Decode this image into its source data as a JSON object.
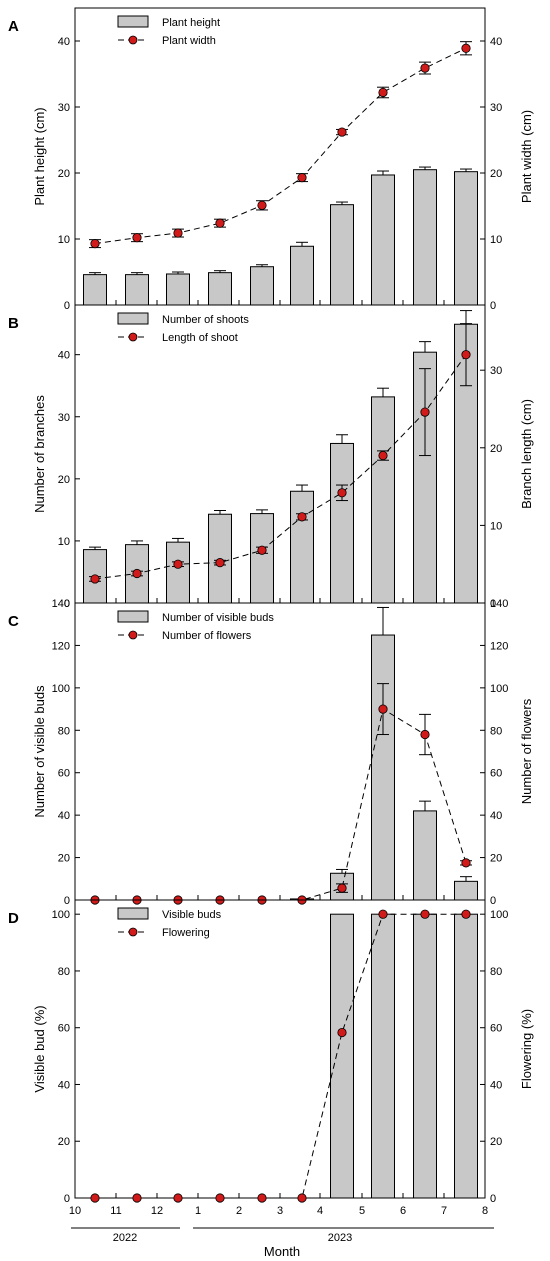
{
  "chart_data": [
    {
      "type": "bar+line",
      "panel_letter": "A",
      "bar_series": {
        "name": "Plant height",
        "values": [
          4.6,
          4.6,
          4.7,
          4.9,
          5.8,
          8.9,
          15.2,
          19.7,
          20.5,
          20.2
        ],
        "errors": [
          0.3,
          0.3,
          0.3,
          0.3,
          0.3,
          0.6,
          0.4,
          0.6,
          0.4,
          0.4
        ]
      },
      "line_series": {
        "name": "Plant width",
        "values": [
          9.3,
          10.2,
          10.9,
          12.4,
          15.1,
          19.3,
          26.2,
          32.2,
          35.9,
          38.9
        ],
        "errors": [
          0.6,
          0.6,
          0.6,
          0.6,
          0.7,
          0.6,
          0.4,
          0.8,
          0.9,
          1.0
        ]
      },
      "ylabel": "Plant height (cm)",
      "y2label": "Plant width (cm)",
      "ylim": [
        0,
        45
      ],
      "y2lim": [
        0,
        45
      ],
      "yticks": [
        0,
        10,
        20,
        30,
        40
      ],
      "y2ticks": [
        0,
        10,
        20,
        30,
        40
      ],
      "legend": "top-left"
    },
    {
      "type": "bar+line",
      "panel_letter": "B",
      "bar_series": {
        "name": "Number of shoots",
        "values": [
          8.6,
          9.4,
          9.8,
          14.3,
          14.4,
          18.0,
          25.7,
          33.2,
          40.4,
          44.9
        ],
        "errors": [
          0.4,
          0.6,
          0.6,
          0.6,
          0.6,
          1.0,
          1.4,
          1.4,
          1.7,
          2.2
        ]
      },
      "line_series": {
        "name": "Length of shoot",
        "values": [
          3.1,
          3.8,
          5.0,
          5.2,
          6.8,
          11.1,
          14.2,
          19.0,
          24.6,
          32.0
        ],
        "errors": [
          0.3,
          0.3,
          0.3,
          0.3,
          0.4,
          0.4,
          1.0,
          0.6,
          5.6,
          4.0
        ]
      },
      "ylabel": "Number of branches",
      "y2label": "Branch length (cm)",
      "ylim": [
        0,
        48
      ],
      "y2lim": [
        0,
        38.4
      ],
      "yticks": [
        0,
        10,
        20,
        30,
        40
      ],
      "y2ticks": [
        0,
        10,
        20,
        30
      ],
      "legend": "top-left"
    },
    {
      "type": "bar+line",
      "panel_letter": "C",
      "bar_series": {
        "name": "Number of visible buds",
        "values": [
          0,
          0,
          0,
          0,
          0,
          0.5,
          12.6,
          124.9,
          42.0,
          8.8
        ],
        "errors": [
          0,
          0,
          0,
          0,
          0,
          0,
          1.8,
          13.0,
          4.6,
          2.2
        ]
      },
      "line_series": {
        "name": "Number of flowers",
        "values": [
          0,
          0,
          0,
          0,
          0,
          0,
          5.6,
          90.0,
          78.0,
          17.5
        ],
        "errors": [
          0,
          0,
          0,
          0,
          0,
          0,
          2.0,
          12.0,
          9.5,
          1.0
        ]
      },
      "ylabel": "Number of visible buds",
      "y2label": "Number of flowers",
      "ylim": [
        0,
        140
      ],
      "y2lim": [
        0,
        140
      ],
      "yticks": [
        0,
        20,
        40,
        60,
        80,
        100,
        120,
        140
      ],
      "y2ticks": [
        0,
        20,
        40,
        60,
        80,
        100,
        120,
        140
      ],
      "legend": "top-left"
    },
    {
      "type": "bar+line",
      "panel_letter": "D",
      "bar_series": {
        "name": "Visible buds",
        "values": [
          0,
          0,
          0,
          0,
          0,
          0,
          100,
          100,
          100,
          100
        ],
        "errors": [
          0,
          0,
          0,
          0,
          0,
          0,
          0,
          0,
          0,
          0
        ]
      },
      "line_series": {
        "name": "Flowering",
        "values": [
          0,
          0,
          0,
          0,
          0,
          0,
          58.3,
          100,
          100,
          100
        ],
        "errors": [
          0,
          0,
          0,
          0,
          0,
          0,
          0,
          0,
          0,
          0
        ]
      },
      "ylabel": "Visible bud (%)",
      "y2label": "Flowering (%)",
      "ylim": [
        0,
        105
      ],
      "y2lim": [
        0,
        105
      ],
      "yticks": [
        0,
        20,
        40,
        60,
        80,
        100
      ],
      "y2ticks": [
        0,
        20,
        40,
        60,
        80,
        100
      ],
      "legend": "top-left"
    }
  ],
  "x_axis": {
    "ticks": [
      "10",
      "11",
      "12",
      "1",
      "2",
      "3",
      "4",
      "5",
      "6",
      "7",
      "8"
    ],
    "xlabel": "Month",
    "years": [
      "2022",
      "2023"
    ]
  },
  "colors": {
    "bar_fill": "#c8c8c8",
    "line_marker": "#d11a1a"
  }
}
